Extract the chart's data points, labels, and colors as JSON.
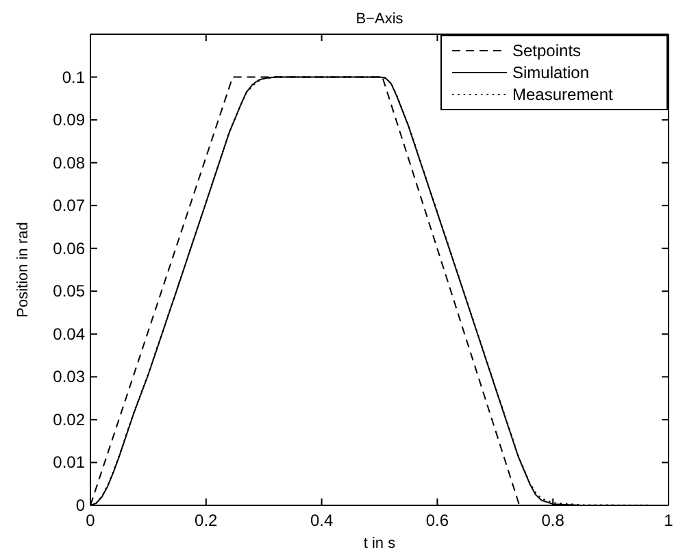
{
  "chart_data": {
    "type": "line",
    "title": "B−Axis",
    "xlabel": "t in s",
    "ylabel": "Position in rad",
    "xlim": [
      0,
      1
    ],
    "ylim": [
      0,
      0.11
    ],
    "xticks": [
      0,
      0.2,
      0.4,
      0.6,
      0.8,
      1
    ],
    "yticks": [
      0,
      0.01,
      0.02,
      0.03,
      0.04,
      0.05,
      0.06,
      0.07,
      0.08,
      0.09,
      0.1
    ],
    "grid": false,
    "legend": "top right",
    "marker": "none",
    "series": [
      {
        "name": "Setpoints",
        "color": "#000000",
        "line_style": "dashed",
        "x": [
          0,
          0.246,
          0.505,
          0.742,
          1
        ],
        "values": [
          0,
          0.1,
          0.1,
          0,
          0
        ]
      },
      {
        "name": "Simulation",
        "color": "#000000",
        "line_style": "solid",
        "x": [
          0,
          0.01,
          0.02,
          0.03,
          0.04,
          0.05,
          0.075,
          0.1,
          0.15,
          0.2,
          0.24,
          0.26,
          0.27,
          0.28,
          0.29,
          0.3,
          0.32,
          0.5,
          0.51,
          0.52,
          0.53,
          0.55,
          0.6,
          0.65,
          0.7,
          0.74,
          0.76,
          0.77,
          0.78,
          0.8,
          0.85,
          1
        ],
        "values": [
          0,
          0.0005,
          0.002,
          0.0045,
          0.0078,
          0.0115,
          0.0215,
          0.0305,
          0.0505,
          0.0707,
          0.087,
          0.0935,
          0.0965,
          0.0982,
          0.0992,
          0.0997,
          0.1,
          0.1,
          0.0998,
          0.0985,
          0.0955,
          0.0886,
          0.0683,
          0.048,
          0.0276,
          0.0114,
          0.005,
          0.0025,
          0.0012,
          0.0003,
          0,
          0
        ]
      },
      {
        "name": "Measurement",
        "color": "#000000",
        "line_style": "dotted",
        "x": [
          0,
          0.01,
          0.02,
          0.03,
          0.04,
          0.05,
          0.075,
          0.1,
          0.15,
          0.2,
          0.24,
          0.26,
          0.27,
          0.28,
          0.29,
          0.3,
          0.32,
          0.5,
          0.51,
          0.52,
          0.53,
          0.55,
          0.6,
          0.65,
          0.7,
          0.74,
          0.76,
          0.77,
          0.78,
          0.8,
          0.85,
          1
        ],
        "values": [
          0,
          0.0005,
          0.0022,
          0.0047,
          0.008,
          0.0117,
          0.0217,
          0.0307,
          0.0506,
          0.0708,
          0.0871,
          0.0935,
          0.0963,
          0.0979,
          0.099,
          0.0996,
          0.1,
          0.1,
          0.0998,
          0.0986,
          0.0957,
          0.0888,
          0.0685,
          0.0482,
          0.0278,
          0.0116,
          0.0052,
          0.003,
          0.0016,
          0.0006,
          0.0001,
          0
        ]
      }
    ]
  }
}
